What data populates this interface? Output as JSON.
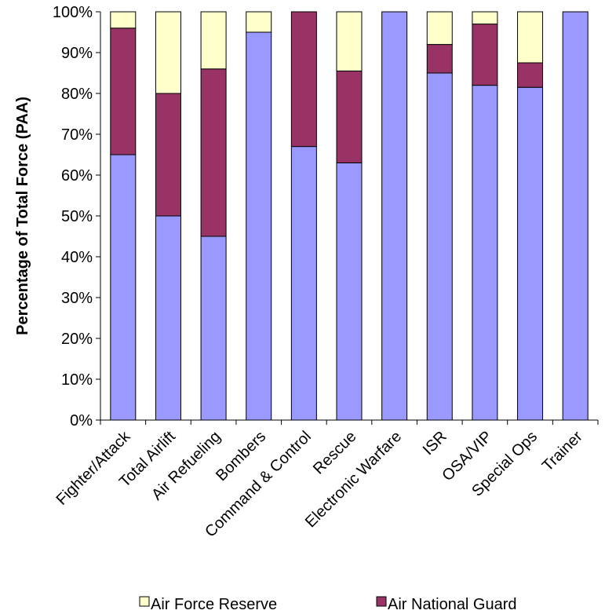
{
  "chart_data": {
    "type": "bar",
    "stacked": true,
    "percent_stacked": true,
    "ylabel": "Percentage of Total Force (PAA)",
    "ylim": [
      0,
      100
    ],
    "ytick_labels": [
      "0%",
      "10%",
      "20%",
      "30%",
      "40%",
      "50%",
      "60%",
      "70%",
      "80%",
      "90%",
      "100%"
    ],
    "categories": [
      "Fighter/Attack",
      "Total Airlift",
      "Air Refueling",
      "Bombers",
      "Command & Control",
      "Rescue",
      "Electronic Warfare",
      "ISR",
      "OSA/VIP",
      "Special Ops",
      "Trainer"
    ],
    "series": [
      {
        "key": "active",
        "color": "#9999ff",
        "values": [
          65,
          50,
          45,
          95,
          67,
          63,
          100,
          85,
          82,
          81.5,
          100
        ]
      },
      {
        "name": "Air National Guard",
        "color": "#993366",
        "values": [
          31,
          30,
          41,
          0,
          33,
          22.5,
          0,
          7,
          15,
          6,
          0
        ]
      },
      {
        "name": "Air Force Reserve",
        "color": "#ffffcc",
        "values": [
          4,
          20,
          14,
          5,
          0,
          14.5,
          0,
          8,
          3,
          12.5,
          0
        ]
      }
    ],
    "legend": {
      "placement": "bottom",
      "visible_entries": [
        "Air Force Reserve",
        "Air National Guard"
      ]
    },
    "grid": false
  }
}
